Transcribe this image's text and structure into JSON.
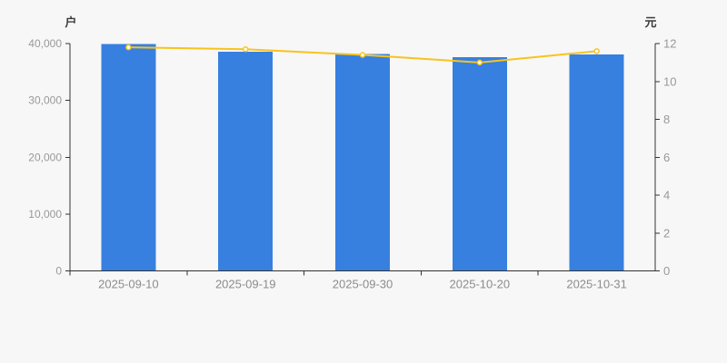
{
  "style": {
    "background": "#f7f7f7",
    "bar_color": "#3780e0",
    "line_color": "#f8c31d",
    "marker_fill": "#ffffff",
    "axis_line_color": "#333333",
    "y_tick_label_color": "#999999",
    "x_tick_label_color": "#8c8c8c",
    "axis_name_color": "#3c3c3c"
  },
  "chart_data": {
    "type": "combo",
    "title": "",
    "legend": "none",
    "grid": "off",
    "categories": [
      "2025-09-10",
      "2025-09-19",
      "2025-09-30",
      "2025-10-20",
      "2025-10-31"
    ],
    "series": [
      {
        "id": "households-bars",
        "type": "bar",
        "y_axis": "left",
        "values": [
          39900,
          38600,
          38200,
          37600,
          38100
        ]
      },
      {
        "id": "price-line",
        "type": "line",
        "y_axis": "right",
        "values": [
          11.8,
          11.7,
          11.4,
          11.0,
          11.6
        ]
      }
    ],
    "y_left": {
      "name": "户",
      "min": 0,
      "max": 40000,
      "interval": 10000,
      "tick_labels": [
        "0",
        "10,000",
        "20,000",
        "30,000",
        "40,000"
      ]
    },
    "y_right": {
      "name": "元",
      "min": 0,
      "max": 12,
      "interval": 2,
      "tick_labels": [
        "0",
        "2",
        "4",
        "6",
        "8",
        "10",
        "12"
      ]
    }
  }
}
